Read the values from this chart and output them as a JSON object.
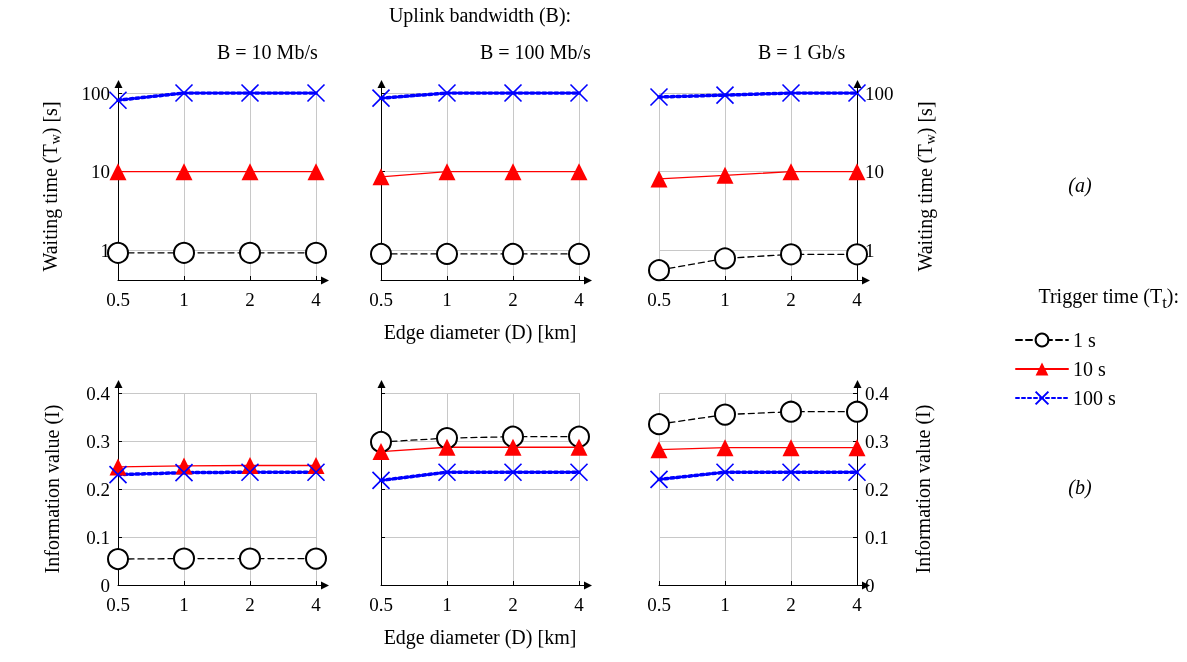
{
  "chart_data": [
    {
      "type": "line",
      "title": "B = 10 Mb/s",
      "ylabel": "Waiting time (T$_{w}$) [s]",
      "categories": [
        "0.5",
        "1",
        "2",
        "4"
      ],
      "log": true,
      "ylim": [
        0.42,
        100
      ],
      "yticks": [
        1,
        10,
        100
      ],
      "grid": true,
      "series": [
        {
          "color": "#000000",
          "marker": "circle",
          "line_style": "dashed",
          "values": [
            0.93,
            0.93,
            0.93,
            0.93
          ]
        },
        {
          "color": "#ff0000",
          "marker": "triangle",
          "line_style": "solid",
          "values": [
            10,
            10,
            10,
            10
          ]
        },
        {
          "color": "#0000ff",
          "marker": "cross",
          "line_style": "dotted",
          "values": [
            81,
            100,
            100,
            100
          ]
        }
      ]
    },
    {
      "type": "line",
      "title": "B = 100 Mb/s",
      "xlabel": "Edge diameter (D) [km]",
      "annotations": [
        "Uplink bandwidth (B):"
      ],
      "categories": [
        "0.5",
        "1",
        "2",
        "4"
      ],
      "log": true,
      "ylim": [
        0.42,
        100
      ],
      "yticks": [
        1,
        10,
        100
      ],
      "grid": true,
      "tick_labels": "x",
      "series": [
        {
          "color": "#000000",
          "marker": "circle",
          "line_style": "dashed",
          "values": [
            0.9,
            0.9,
            0.9,
            0.9
          ]
        },
        {
          "color": "#ff0000",
          "marker": "triangle",
          "line_style": "solid",
          "values": [
            8.6,
            10,
            10,
            10
          ]
        },
        {
          "color": "#0000ff",
          "marker": "cross",
          "line_style": "dotted",
          "values": [
            86,
            100,
            100,
            100
          ]
        }
      ]
    },
    {
      "type": "line",
      "title": "B = 1 Gb/s",
      "y2label": "Waiting time (T$_{w}$) [s]",
      "annotations": [
        "(a)"
      ],
      "legend": "right",
      "legend_title": "Trigger time (T$_{t}$):",
      "categories": [
        "0.5",
        "1",
        "2",
        "4"
      ],
      "log": "y2",
      "y2lim": [
        0.42,
        100
      ],
      "y2ticks": [
        1,
        10,
        100
      ],
      "grid": true,
      "series": [
        {
          "name": "1 s",
          "color": "#000000",
          "marker": "circle",
          "line_style": "dashed",
          "axis": "y2",
          "values": [
            0.56,
            0.79,
            0.89,
            0.89
          ]
        },
        {
          "name": "10 s",
          "color": "#ff0000",
          "marker": "triangle",
          "line_style": "solid",
          "axis": "y2",
          "values": [
            8.1,
            9,
            10,
            10
          ]
        },
        {
          "name": "100 s",
          "color": "#0000ff",
          "marker": "cross",
          "line_style": "dotted",
          "axis": "y2",
          "values": [
            89,
            94,
            100,
            100
          ]
        }
      ]
    },
    {
      "type": "line",
      "ylabel": "Information value (I)",
      "categories": [
        "0.5",
        "1",
        "2",
        "4"
      ],
      "ylim": [
        0,
        0.4
      ],
      "yticks": [
        0,
        0.1,
        0.2,
        0.3,
        0.4
      ],
      "grid": true,
      "series": [
        {
          "color": "#000000",
          "marker": "circle",
          "line_style": "dashed",
          "values": [
            0.054,
            0.055,
            0.055,
            0.055
          ]
        },
        {
          "color": "#ff0000",
          "marker": "triangle",
          "line_style": "solid",
          "values": [
            0.246,
            0.248,
            0.249,
            0.249
          ]
        },
        {
          "color": "#0000ff",
          "marker": "cross",
          "line_style": "dotted",
          "values": [
            0.23,
            0.234,
            0.235,
            0.235
          ]
        }
      ]
    },
    {
      "type": "line",
      "xlabel": "Edge diameter (D) [km]",
      "categories": [
        "0.5",
        "1",
        "2",
        "4"
      ],
      "ylim": [
        0,
        0.4
      ],
      "yticks": [
        0,
        0.1,
        0.2,
        0.3,
        0.4
      ],
      "grid": true,
      "tick_labels": "x",
      "series": [
        {
          "color": "#000000",
          "marker": "circle",
          "line_style": "dashed",
          "values": [
            0.298,
            0.306,
            0.309,
            0.309
          ]
        },
        {
          "color": "#ff0000",
          "marker": "triangle",
          "line_style": "solid",
          "values": [
            0.278,
            0.287,
            0.287,
            0.287
          ]
        },
        {
          "color": "#0000ff",
          "marker": "cross",
          "line_style": "dotted",
          "values": [
            0.218,
            0.235,
            0.235,
            0.235
          ]
        }
      ]
    },
    {
      "type": "line",
      "y2label": "Information value (I)",
      "annotations": [
        "(b)"
      ],
      "categories": [
        "0.5",
        "1",
        "2",
        "4"
      ],
      "y2lim": [
        0,
        0.4
      ],
      "y2ticks": [
        0,
        0.1,
        0.2,
        0.3,
        0.4
      ],
      "grid": true,
      "series": [
        {
          "color": "#000000",
          "marker": "circle",
          "line_style": "dashed",
          "axis": "y2",
          "values": [
            0.335,
            0.355,
            0.361,
            0.361
          ]
        },
        {
          "color": "#ff0000",
          "marker": "triangle",
          "line_style": "solid",
          "axis": "y2",
          "values": [
            0.282,
            0.286,
            0.286,
            0.286
          ]
        },
        {
          "color": "#0000ff",
          "marker": "cross",
          "line_style": "dotted",
          "axis": "y2",
          "values": [
            0.22,
            0.235,
            0.235,
            0.235
          ]
        }
      ]
    }
  ]
}
